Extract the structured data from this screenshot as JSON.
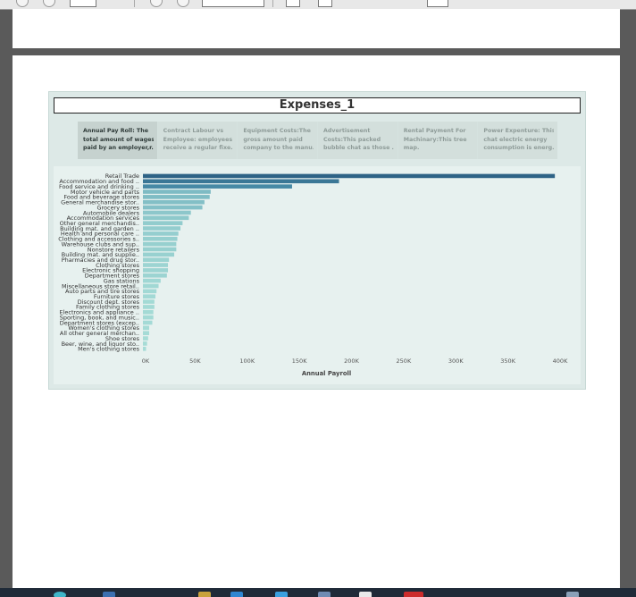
{
  "window": {
    "page_number": ""
  },
  "dashboard": {
    "title": "Expenses_1",
    "story_points": [
      {
        "lines": [
          "Annual Pay Roll:   The",
          "total amount of wages",
          "paid by an employer,r.."
        ],
        "active": true
      },
      {
        "lines": [
          "Contract Labour vs",
          "Employee: employees",
          "receive a regular fixe.."
        ],
        "active": false
      },
      {
        "lines": [
          "Equipment Costs:The",
          "gross amount paid",
          "company to the manu.."
        ],
        "active": false
      },
      {
        "lines": [
          "Advertisement",
          "Costs:This packed",
          "bubble chat as those .."
        ],
        "active": false
      },
      {
        "lines": [
          "Rental Payment For",
          "Machinary:This tree",
          "map."
        ],
        "active": false
      },
      {
        "lines": [
          "Power Expenture: This",
          "chat electric energy",
          "consumption is energ.."
        ],
        "active": false
      }
    ]
  },
  "colors": {
    "bar_high": "#2e6386",
    "bar_mid": "#4d93ad",
    "bar_low": "#a7ddd7",
    "plot_bg": "#e7f1ef",
    "label": "#333333"
  },
  "chart_data": {
    "type": "bar",
    "orientation": "horizontal",
    "title": "",
    "xlabel": "Annual Payroll",
    "ylabel": "",
    "xlim": [
      0,
      400000
    ],
    "x_ticks": [
      "0K",
      "50K",
      "100K",
      "150K",
      "200K",
      "250K",
      "300K",
      "350K",
      "400K"
    ],
    "grid": false,
    "categories": [
      "Retail Trade",
      "Accommodation and food ..",
      "Food service and drinking ..",
      "Motor vehicle and parts",
      "Food and beverage stores",
      "General merchandise stor..",
      "Grocery stores",
      "Automobile dealers",
      "Accommodation services",
      "Other general merchandis..",
      "Building mat. and garden ..",
      "Health and personal care ..",
      "Clothing and accessories s..",
      "Warehouse clubs and sup..",
      "Nonstore retailers",
      "Building mat. and supplie..",
      "Pharmacies and drug stor..",
      "Clothing stores",
      "Electronic shopping",
      "Department stores",
      "Gas stations",
      "Miscellaneous store retail..",
      "Auto parts and tire stores",
      "Furniture stores",
      "Discount dept. stores",
      "Family clothing stores",
      "Electronics and appliance ..",
      "Sporting, book, and music..",
      "Department stores (excep..",
      "Women's clothing stores",
      "All other general merchan..",
      "Shoe stores",
      "Beer, wine, and liquor sto..",
      "Men's clothing stores"
    ],
    "values": [
      395000,
      188000,
      143000,
      65000,
      64000,
      59000,
      57000,
      46000,
      44000,
      38000,
      36000,
      34000,
      33000,
      32000,
      32000,
      30000,
      25000,
      24000,
      24000,
      23000,
      17000,
      15000,
      13000,
      12000,
      11000,
      11000,
      10000,
      10000,
      9000,
      6000,
      6000,
      5000,
      4000,
      3000
    ]
  }
}
